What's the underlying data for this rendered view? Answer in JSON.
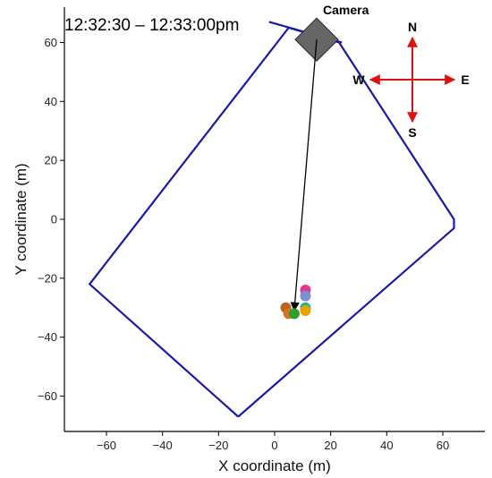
{
  "chart_data": {
    "type": "scatter",
    "title": "12:32:30 – 12:33:00pm",
    "xlabel": "X coordinate (m)",
    "ylabel": "Y coordinate (m)",
    "xlim": [
      -75,
      75
    ],
    "ylim": [
      -72,
      72
    ],
    "x_ticks": [
      -60,
      -40,
      -20,
      0,
      20,
      40,
      60
    ],
    "y_ticks": [
      -60,
      -40,
      -20,
      0,
      20,
      40,
      60
    ],
    "x_tick_labels": [
      "−60",
      "−40",
      "−20",
      "0",
      "20",
      "40",
      "60"
    ],
    "y_tick_labels": [
      "−60",
      "−40",
      "−20",
      "0",
      "20",
      "40",
      "60"
    ],
    "grid": false,
    "boundary": {
      "color": "#1a1aa8",
      "points": [
        [
          -13,
          -67
        ],
        [
          64,
          -3
        ],
        [
          64,
          0
        ],
        [
          23,
          60
        ],
        [
          5,
          65
        ],
        [
          -66,
          -22
        ],
        [
          -13,
          -67
        ]
      ]
    },
    "camera": {
      "label": "Camera",
      "x": 15,
      "y": 61,
      "fill": "#666666",
      "view_line": [
        [
          -2,
          67
        ],
        [
          24,
          60
        ]
      ]
    },
    "camera_arrow": {
      "from": [
        15,
        61
      ],
      "to": [
        7,
        -31
      ],
      "color": "#000000"
    },
    "points": [
      {
        "x": 11,
        "y": -24,
        "color": "#e8368f"
      },
      {
        "x": 11,
        "y": -26,
        "color": "#7b8fd4"
      },
      {
        "x": 11,
        "y": -30,
        "color": "#1fb3a3"
      },
      {
        "x": 11,
        "y": -31,
        "color": "#f0a000"
      },
      {
        "x": 4,
        "y": -30,
        "color": "#b5651d"
      },
      {
        "x": 5,
        "y": -32,
        "color": "#e07020"
      },
      {
        "x": 7,
        "y": -32,
        "color": "#2ca02c"
      }
    ],
    "compass": {
      "color": "#e01010",
      "labels": {
        "north": "N",
        "south": "S",
        "east": "E",
        "west": "W"
      }
    }
  }
}
